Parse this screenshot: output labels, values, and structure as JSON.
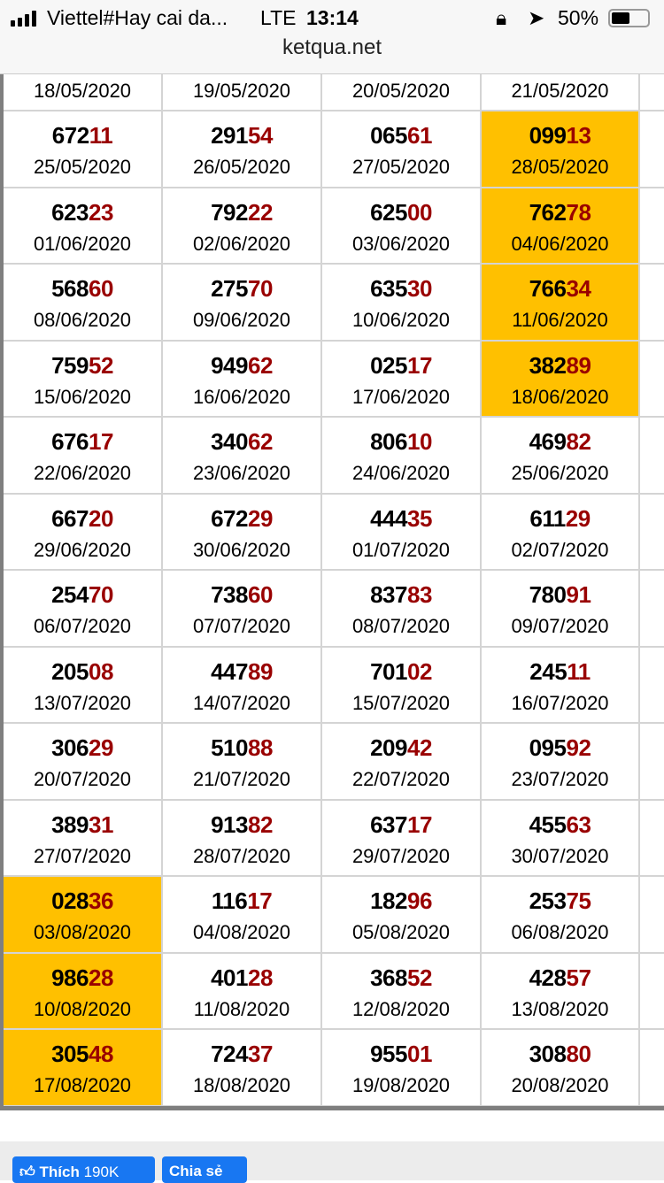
{
  "status_bar": {
    "carrier": "Viettel#Hay cai da...",
    "network": "LTE",
    "time": "13:14",
    "battery": "50%",
    "battery_level": 0.5,
    "icons": [
      "signal-icon",
      "orientation-lock-icon",
      "location-icon",
      "battery-icon"
    ]
  },
  "browser": {
    "url": "ketqua.net"
  },
  "colors": {
    "highlight": "#ffc000",
    "tail": "#990000"
  },
  "top_partial_row": [
    "18/05/2020",
    "19/05/2020",
    "20/05/2020",
    "21/05/2020"
  ],
  "rows": [
    [
      {
        "n": "67211",
        "d": "25/05/2020"
      },
      {
        "n": "29154",
        "d": "26/05/2020"
      },
      {
        "n": "06561",
        "d": "27/05/2020"
      },
      {
        "n": "09913",
        "d": "28/05/2020",
        "hl": true
      }
    ],
    [
      {
        "n": "62323",
        "d": "01/06/2020"
      },
      {
        "n": "79222",
        "d": "02/06/2020"
      },
      {
        "n": "62500",
        "d": "03/06/2020"
      },
      {
        "n": "76278",
        "d": "04/06/2020",
        "hl": true
      }
    ],
    [
      {
        "n": "56860",
        "d": "08/06/2020"
      },
      {
        "n": "27570",
        "d": "09/06/2020"
      },
      {
        "n": "63530",
        "d": "10/06/2020"
      },
      {
        "n": "76634",
        "d": "11/06/2020",
        "hl": true
      }
    ],
    [
      {
        "n": "75952",
        "d": "15/06/2020"
      },
      {
        "n": "94962",
        "d": "16/06/2020"
      },
      {
        "n": "02517",
        "d": "17/06/2020"
      },
      {
        "n": "38289",
        "d": "18/06/2020",
        "hl": true
      }
    ],
    [
      {
        "n": "67617",
        "d": "22/06/2020"
      },
      {
        "n": "34062",
        "d": "23/06/2020"
      },
      {
        "n": "80610",
        "d": "24/06/2020"
      },
      {
        "n": "46982",
        "d": "25/06/2020"
      }
    ],
    [
      {
        "n": "66720",
        "d": "29/06/2020"
      },
      {
        "n": "67229",
        "d": "30/06/2020"
      },
      {
        "n": "44435",
        "d": "01/07/2020"
      },
      {
        "n": "61129",
        "d": "02/07/2020"
      }
    ],
    [
      {
        "n": "25470",
        "d": "06/07/2020"
      },
      {
        "n": "73860",
        "d": "07/07/2020"
      },
      {
        "n": "83783",
        "d": "08/07/2020"
      },
      {
        "n": "78091",
        "d": "09/07/2020"
      }
    ],
    [
      {
        "n": "20508",
        "d": "13/07/2020"
      },
      {
        "n": "44789",
        "d": "14/07/2020"
      },
      {
        "n": "70102",
        "d": "15/07/2020"
      },
      {
        "n": "24511",
        "d": "16/07/2020"
      }
    ],
    [
      {
        "n": "30629",
        "d": "20/07/2020"
      },
      {
        "n": "51088",
        "d": "21/07/2020"
      },
      {
        "n": "20942",
        "d": "22/07/2020"
      },
      {
        "n": "09592",
        "d": "23/07/2020"
      }
    ],
    [
      {
        "n": "38931",
        "d": "27/07/2020"
      },
      {
        "n": "91382",
        "d": "28/07/2020"
      },
      {
        "n": "63717",
        "d": "29/07/2020"
      },
      {
        "n": "45563",
        "d": "30/07/2020"
      }
    ],
    [
      {
        "n": "02836",
        "d": "03/08/2020",
        "hl": true
      },
      {
        "n": "11617",
        "d": "04/08/2020"
      },
      {
        "n": "18296",
        "d": "05/08/2020"
      },
      {
        "n": "25375",
        "d": "06/08/2020"
      }
    ],
    [
      {
        "n": "98628",
        "d": "10/08/2020",
        "hl": true
      },
      {
        "n": "40128",
        "d": "11/08/2020"
      },
      {
        "n": "36852",
        "d": "12/08/2020"
      },
      {
        "n": "42857",
        "d": "13/08/2020"
      }
    ],
    [
      {
        "n": "30548",
        "d": "17/08/2020",
        "hl": true
      },
      {
        "n": "72437",
        "d": "18/08/2020"
      },
      {
        "n": "95501",
        "d": "19/08/2020"
      },
      {
        "n": "30880",
        "d": "20/08/2020"
      }
    ]
  ],
  "footer": {
    "like_label": "Thích",
    "like_count": "190K",
    "share_label": "Chia sẻ"
  }
}
